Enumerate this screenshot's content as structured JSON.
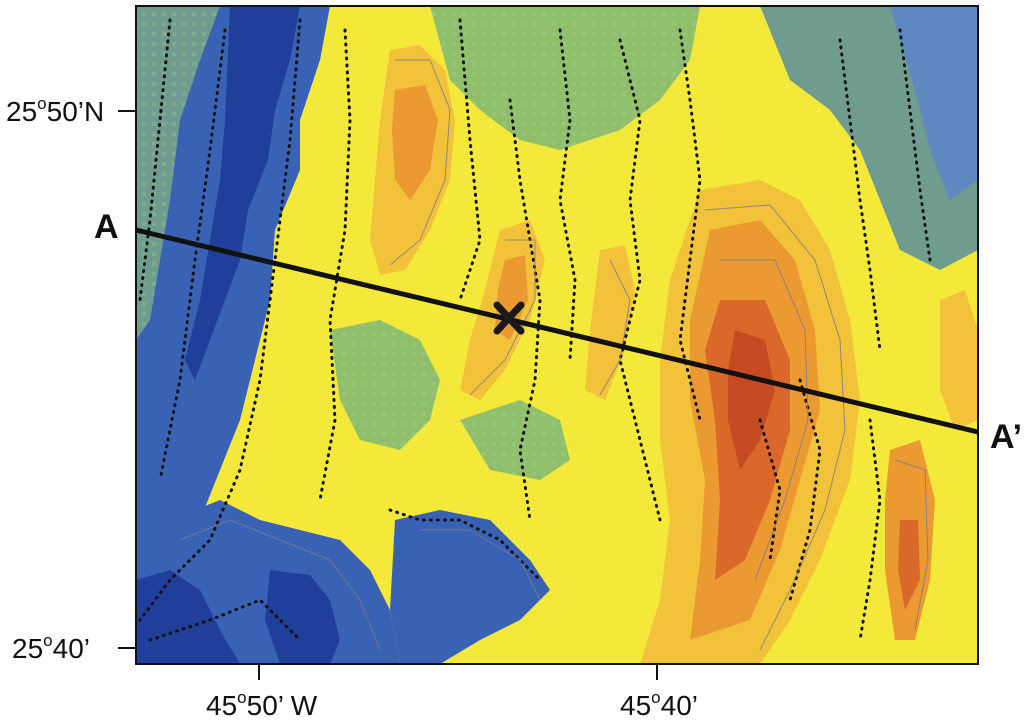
{
  "map": {
    "axes": {
      "y_ticks": [
        {
          "deg": "25",
          "sup": "o",
          "rest": "50’N"
        },
        {
          "deg": "25",
          "sup": "o",
          "rest": "40’"
        }
      ],
      "x_ticks": [
        {
          "deg": "45",
          "sup": "o",
          "rest": "50’ W"
        },
        {
          "deg": "45",
          "sup": "o",
          "rest": "40’"
        }
      ]
    },
    "section_line": {
      "start_label": "A",
      "end_label": "A’"
    },
    "marker": {
      "symbol": "cross",
      "color": "#1a1a1a"
    },
    "colors": {
      "deep": "#1f3f9a",
      "deep_mid": "#3a62b4",
      "mid_blue": "#5f88c0",
      "teal": "#6f9c8e",
      "green": "#8fbf6a",
      "yellow_green": "#c9df4e",
      "yellow": "#f4e93a",
      "light_orange": "#f2c23a",
      "orange": "#ea9a30",
      "dark_orange": "#d9682a",
      "red": "#c64b22",
      "line": "#111111"
    }
  }
}
